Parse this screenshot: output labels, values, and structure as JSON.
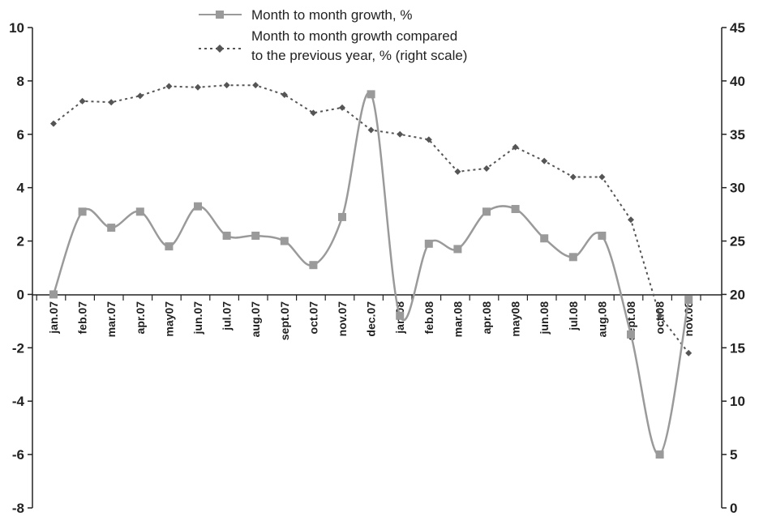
{
  "chart_data": {
    "type": "line",
    "categories": [
      "jan.07",
      "feb.07",
      "mar.07",
      "apr.07",
      "may07",
      "jun.07",
      "jul.07",
      "aug.07",
      "sept.07",
      "oct.07",
      "nov.07",
      "dec.07",
      "jan.08",
      "feb.08",
      "mar.08",
      "apr.08",
      "may08",
      "jun.08",
      "jul.08",
      "aug.08",
      "sept.08",
      "oct.08",
      "nov.08"
    ],
    "series": [
      {
        "name": "Month to month growth, %",
        "axis": "left",
        "color": "#9a9a9a",
        "marker": "square",
        "line_style": "solid-smooth",
        "values": [
          0.0,
          3.1,
          2.5,
          3.1,
          1.8,
          3.3,
          2.2,
          2.2,
          2.0,
          1.1,
          2.9,
          7.5,
          -0.8,
          1.9,
          1.7,
          3.1,
          3.2,
          2.1,
          1.4,
          2.2,
          -1.5,
          -6.0,
          -0.2
        ]
      },
      {
        "name_lines": [
          "Month to month growth compared",
          "to the previous year, % (right scale)"
        ],
        "axis": "right",
        "color": "#555555",
        "marker": "diamond",
        "line_style": "dotted",
        "values": [
          36.0,
          38.1,
          38.0,
          38.6,
          39.5,
          39.4,
          39.6,
          39.6,
          38.7,
          37.0,
          37.5,
          35.4,
          35.0,
          34.5,
          31.5,
          31.8,
          33.8,
          32.5,
          31.0,
          31.0,
          27.0,
          18.0,
          14.5
        ]
      }
    ],
    "y_left": {
      "ylim": [
        -8,
        10
      ],
      "ticks": [
        "10",
        "8",
        "6",
        "4",
        "2",
        "0",
        "-2",
        "-4",
        "-6",
        "-8"
      ]
    },
    "y_right": {
      "ylim": [
        0,
        45
      ],
      "ticks": [
        "45",
        "40",
        "35",
        "30",
        "25",
        "20",
        "15",
        "10",
        "5",
        "0"
      ]
    },
    "legend": "top-center",
    "grid": false
  }
}
